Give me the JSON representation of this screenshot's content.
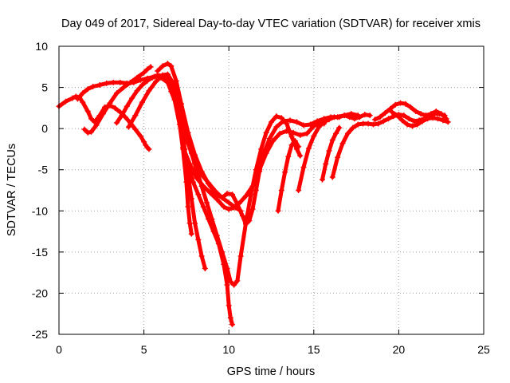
{
  "chart_data": {
    "type": "scatter",
    "title": "Day 049 of 2017, Sidereal Day-to-day VTEC variation (SDTVAR) for receiver xmis",
    "xlabel": "GPS time / hours",
    "ylabel": "SDTVAR / TECUs",
    "xlim": [
      0,
      25
    ],
    "ylim": [
      -25,
      10
    ],
    "xticks": [
      0,
      5,
      10,
      15,
      20,
      25
    ],
    "yticks": [
      -25,
      -20,
      -15,
      -10,
      -5,
      0,
      5,
      10
    ],
    "grid": true,
    "marker": "+",
    "color": "#ff0000",
    "series": [
      {
        "x": [
          0.0,
          0.4,
          0.8,
          1.0,
          1.2,
          1.4,
          1.7,
          1.9,
          2.1,
          2.4,
          2.7,
          3.0,
          3.3,
          3.6,
          3.9,
          4.2,
          4.5,
          4.8,
          5.0,
          5.1,
          5.2,
          5.3
        ],
        "y": [
          2.7,
          3.3,
          3.7,
          3.9,
          3.8,
          3.2,
          2.1,
          1.2,
          0.8,
          1.6,
          2.6,
          2.8,
          2.5,
          2.0,
          1.4,
          0.7,
          -0.1,
          -0.9,
          -1.6,
          -2.0,
          -2.3,
          -2.5
        ]
      },
      {
        "x": [
          1.1,
          1.4,
          1.7,
          2.0,
          2.4,
          2.8,
          3.2,
          3.6,
          4.0,
          4.4,
          4.8,
          5.2,
          5.6,
          6.0,
          6.4,
          6.8,
          7.1,
          7.3,
          7.5,
          7.6,
          7.7,
          7.8
        ],
        "y": [
          3.6,
          4.3,
          4.8,
          5.1,
          5.3,
          5.5,
          5.6,
          5.6,
          5.5,
          5.6,
          5.9,
          6.1,
          6.3,
          6.2,
          5.6,
          3.5,
          0.5,
          -2.5,
          -6.5,
          -9.5,
          -11.5,
          -12.8
        ]
      },
      {
        "x": [
          1.5,
          1.7,
          1.9,
          2.2,
          2.6,
          3.0,
          3.4,
          3.8,
          4.2,
          4.6,
          5.0,
          5.2,
          5.4
        ],
        "y": [
          -0.1,
          -0.5,
          -0.4,
          0.4,
          1.8,
          3.1,
          4.3,
          5.0,
          5.6,
          6.2,
          6.8,
          7.2,
          7.5
        ]
      },
      {
        "x": [
          3.4,
          3.7,
          4.0,
          4.3,
          4.6,
          4.9,
          5.2,
          5.5,
          5.8,
          6.1,
          6.4,
          6.8,
          7.2,
          7.6,
          8.0,
          8.4,
          8.8,
          9.2,
          9.6,
          10.0,
          10.4,
          10.7
        ],
        "y": [
          0.7,
          1.6,
          2.7,
          3.7,
          4.6,
          5.3,
          5.8,
          6.2,
          6.5,
          6.4,
          5.9,
          4.2,
          1.4,
          -1.8,
          -4.2,
          -5.6,
          -6.6,
          -7.6,
          -8.4,
          -9.0,
          -9.6,
          -10.0
        ]
      },
      {
        "x": [
          4.1,
          4.5,
          4.9,
          5.3,
          5.7,
          6.1,
          6.4,
          6.7,
          7.0,
          7.2,
          7.4,
          7.6,
          7.8,
          8.0,
          8.2,
          8.4,
          8.6
        ],
        "y": [
          0.2,
          1.6,
          3.2,
          4.6,
          5.7,
          6.5,
          6.6,
          5.6,
          3.0,
          0.5,
          -2.5,
          -5.5,
          -8.5,
          -11.5,
          -13.5,
          -15.5,
          -17.0
        ]
      },
      {
        "x": [
          5.8,
          6.1,
          6.4,
          6.6,
          6.9,
          7.2,
          7.6,
          8.0,
          8.4,
          8.8,
          9.2,
          9.6,
          9.9,
          10.2,
          10.5,
          10.8,
          11.0,
          11.2,
          11.4,
          11.6,
          11.8,
          12.0,
          12.4,
          12.8,
          13.2,
          13.6,
          14.0,
          14.4,
          14.8,
          15.2,
          15.6,
          16.0,
          16.4,
          16.8,
          17.2,
          17.6
        ],
        "y": [
          7.0,
          7.6,
          7.9,
          7.6,
          5.8,
          3.0,
          -0.5,
          -3.2,
          -5.2,
          -6.7,
          -7.9,
          -8.4,
          -7.9,
          -8.0,
          -9.2,
          -10.6,
          -11.6,
          -11.2,
          -9.8,
          -7.5,
          -5.2,
          -3.3,
          -1.2,
          0.2,
          0.9,
          1.0,
          0.8,
          0.4,
          0.5,
          0.9,
          1.2,
          1.4,
          1.4,
          1.6,
          1.8,
          1.6
        ]
      },
      {
        "x": [
          6.6,
          6.9,
          7.2,
          7.5,
          7.8,
          8.1,
          8.4,
          8.7,
          9.0,
          9.3,
          9.6,
          9.9,
          10.1,
          10.3,
          10.5,
          10.7,
          11.0,
          11.3,
          11.6,
          11.9,
          12.2,
          12.5,
          12.8,
          13.1,
          13.4,
          13.7,
          14.0,
          14.2
        ],
        "y": [
          4.5,
          3.0,
          1.0,
          -1.0,
          -3.0,
          -5.0,
          -7.0,
          -9.0,
          -11.0,
          -13.0,
          -15.0,
          -17.0,
          -18.6,
          -19.0,
          -18.5,
          -15.5,
          -11.5,
          -8.0,
          -5.0,
          -2.5,
          -0.5,
          0.8,
          1.5,
          1.3,
          0.6,
          -1.0,
          -2.5,
          -3.3
        ]
      },
      {
        "x": [
          7.3,
          7.7,
          8.1,
          8.5,
          8.9,
          9.3,
          9.7,
          10.0,
          10.3,
          10.6,
          11.0,
          11.4,
          11.8,
          12.2,
          12.6,
          13.0,
          13.4,
          13.8,
          14.2,
          14.6,
          15.0,
          15.3,
          15.6
        ],
        "y": [
          -2.3,
          -4.3,
          -6.0,
          -7.0,
          -7.8,
          -8.6,
          -9.5,
          -9.8,
          -9.6,
          -9.1,
          -8.2,
          -7.0,
          -5.0,
          -3.0,
          -1.5,
          -0.6,
          -0.3,
          -0.5,
          -0.8,
          -0.6,
          0.3,
          0.7,
          0.6
        ]
      },
      {
        "x": [
          7.6,
          7.9,
          8.2,
          8.5,
          8.8,
          9.1,
          9.4,
          9.7,
          9.9,
          10.0,
          10.1,
          10.2
        ],
        "y": [
          -4.5,
          -6.5,
          -8.0,
          -9.5,
          -11.0,
          -12.5,
          -14.0,
          -16.5,
          -19.0,
          -21.5,
          -23.0,
          -23.8
        ]
      },
      {
        "x": [
          12.9,
          13.1,
          13.3,
          13.5,
          13.7,
          13.9,
          14.1
        ],
        "y": [
          -10.0,
          -7.5,
          -5.3,
          -3.4,
          -2.0,
          -1.5,
          -2.2
        ]
      },
      {
        "x": [
          14.1,
          14.4,
          14.7,
          15.0,
          15.3,
          15.6,
          15.9,
          16.2,
          16.5,
          16.8,
          17.1,
          17.4,
          17.7,
          18.0,
          18.3
        ],
        "y": [
          -7.5,
          -4.7,
          -2.4,
          -0.9,
          0.2,
          0.8,
          1.1,
          1.4,
          1.4,
          1.6,
          1.4,
          1.2,
          1.4,
          1.7,
          1.6
        ]
      },
      {
        "x": [
          15.5,
          15.7,
          15.9,
          16.1,
          16.3,
          16.5
        ],
        "y": [
          -6.2,
          -4.3,
          -2.7,
          -1.4,
          -0.6,
          0.1
        ]
      },
      {
        "x": [
          16.1,
          16.4,
          16.7,
          17.0,
          17.3,
          17.6,
          17.9,
          18.2,
          18.5,
          18.8,
          19.1,
          19.4,
          19.7,
          20.0,
          20.3,
          20.6,
          20.9,
          21.2,
          21.5,
          21.8,
          22.1,
          22.4,
          22.7
        ],
        "y": [
          -5.9,
          -3.5,
          -1.8,
          -0.6,
          0.1,
          0.5,
          0.6,
          0.6,
          0.5,
          0.6,
          0.9,
          1.2,
          1.5,
          1.7,
          1.6,
          1.2,
          0.9,
          1.0,
          1.2,
          1.5,
          1.8,
          1.8,
          1.6
        ]
      },
      {
        "x": [
          18.6,
          18.9,
          19.2,
          19.5,
          19.8,
          20.1,
          20.4,
          20.7,
          21.0,
          21.3,
          21.6,
          21.9,
          22.2,
          22.5,
          22.8
        ],
        "y": [
          1.1,
          1.4,
          1.9,
          2.4,
          2.9,
          3.1,
          3.0,
          2.6,
          2.1,
          1.8,
          1.6,
          1.8,
          2.1,
          1.8,
          1.2
        ]
      },
      {
        "x": [
          19.6,
          19.9,
          20.2,
          20.5,
          20.8,
          21.1,
          21.4,
          21.7,
          22.0,
          22.3,
          22.6,
          22.9
        ],
        "y": [
          2.0,
          1.6,
          1.0,
          0.5,
          0.3,
          0.5,
          0.9,
          1.2,
          1.3,
          1.2,
          1.0,
          0.8
        ]
      }
    ]
  }
}
